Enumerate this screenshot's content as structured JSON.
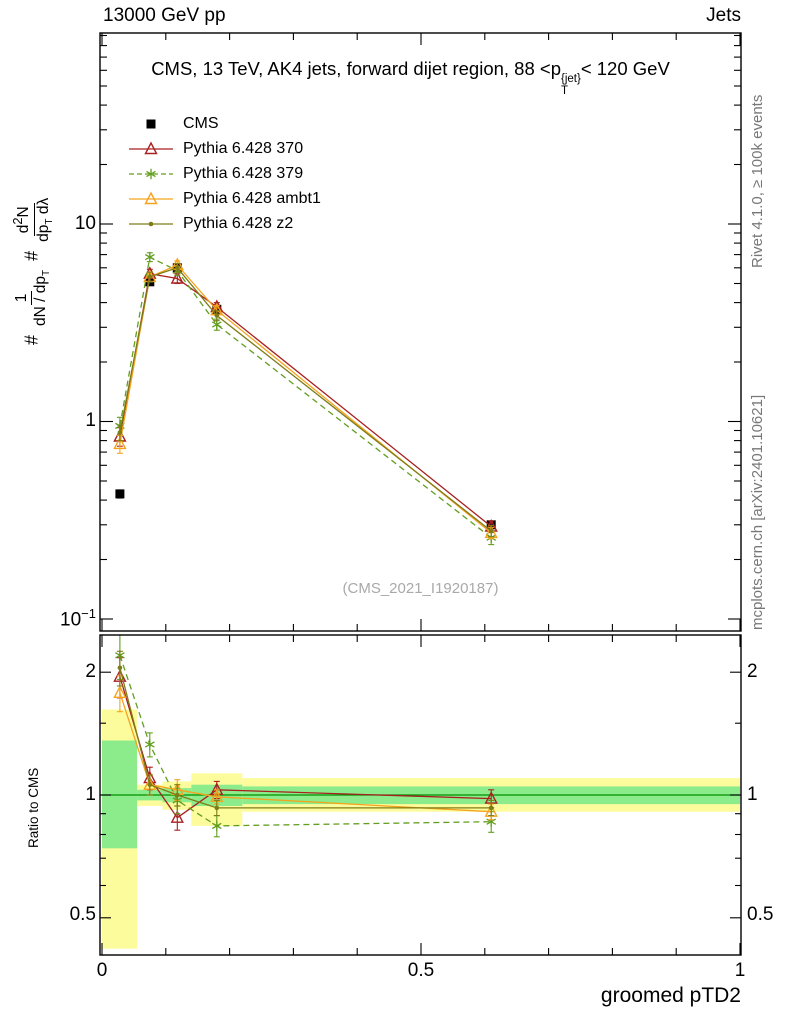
{
  "header": {
    "left": "13000 GeV pp",
    "right": "Jets"
  },
  "side_notes": {
    "rivet": "Rivet 4.1.0, ≥ 100k events",
    "mcplots": "mcplots.cern.ch [arXiv:2401.10621]"
  },
  "watermark": "(CMS_2021_I1920187)",
  "main_panel": {
    "title_parts": {
      "a": "CMS, 13 TeV, AK4 jets, forward dijet region, 88 <p",
      "sup": "{jet}",
      "sub": "T",
      "b": "< 120 GeV"
    },
    "ylabel_parts": {
      "hash1": "#",
      "num1": "1",
      "den1_a": "dN / dp",
      "den1_sub": "T",
      "hash2": "#",
      "num2_a": "d",
      "num2_sup": "2",
      "num2_b": "N",
      "den2_a": "dp",
      "den2_sub": "T",
      "den2_b": " dλ"
    },
    "ytick_labels": {
      "top": "10",
      "mid": "1",
      "bottom_base": "10",
      "bottom_sup": "−1"
    }
  },
  "ratio_panel": {
    "ylabel": "Ratio to CMS",
    "ytick_labels": [
      "2",
      "1",
      "0.5"
    ]
  },
  "xaxis": {
    "title": "groomed pTD2",
    "tick_labels": [
      "0",
      "0.5",
      "1"
    ]
  },
  "chart_data": {
    "type": "line",
    "title": "CMS, 13 TeV, AK4 jets, forward dijet region, 88 <pT^{jet}< 120 GeV",
    "xlabel": "groomed pTD2",
    "ylabel": "# 1/(dN/dpT) # d²N/(dpT dλ)",
    "xlim": [
      0,
      1
    ],
    "legend_position": "top-left",
    "main": {
      "yscale": "log",
      "ylim": [
        0.087,
        92
      ],
      "yticks": [
        0.1,
        1,
        10
      ],
      "x": [
        0.028,
        0.075,
        0.118,
        0.18,
        0.61
      ],
      "series": [
        {
          "name": "CMS",
          "color": "#000000",
          "marker": "square",
          "line": "none",
          "values": [
            0.43,
            5.1,
            6.0,
            3.7,
            0.3
          ],
          "yerr": [
            0.02,
            0.15,
            0.15,
            0.1,
            0.012
          ]
        },
        {
          "name": "Pythia 6.428 370",
          "color": "#a82020",
          "marker": "triangle-open",
          "line": "solid",
          "values": [
            0.84,
            5.6,
            5.3,
            3.8,
            0.294
          ],
          "yerr": [
            0.09,
            0.3,
            0.3,
            0.2,
            0.02
          ]
        },
        {
          "name": "Pythia 6.428 379",
          "color": "#629e1f",
          "marker": "star",
          "line": "dashed",
          "values": [
            0.95,
            6.8,
            5.8,
            3.1,
            0.258
          ],
          "yerr": [
            0.1,
            0.35,
            0.3,
            0.2,
            0.02
          ]
        },
        {
          "name": "Pythia 6.428 ambt1",
          "color": "#f5a31f",
          "marker": "triangle-open",
          "line": "solid",
          "values": [
            0.77,
            5.4,
            6.2,
            3.66,
            0.273
          ],
          "yerr": [
            0.08,
            0.3,
            0.3,
            0.2,
            0.018
          ]
        },
        {
          "name": "Pythia 6.428 z2",
          "color": "#7d7d17",
          "marker": "dot",
          "line": "solid",
          "values": [
            0.88,
            5.4,
            6.0,
            3.44,
            0.279
          ],
          "yerr": [
            0.08,
            0.3,
            0.3,
            0.2,
            0.018
          ]
        }
      ]
    },
    "ratio": {
      "yscale": "log",
      "ylim": [
        0.4,
        2.46
      ],
      "yticks": [
        0.5,
        1,
        2
      ],
      "reference_line": 1,
      "band_colors": {
        "outer": "#fcfc9c",
        "inner": "#8cec8c"
      },
      "bands": [
        {
          "x0": 0.0,
          "x1": 0.055,
          "outer": [
            0.42,
            1.62
          ],
          "inner": [
            0.74,
            1.36
          ]
        },
        {
          "x0": 0.055,
          "x1": 0.095,
          "outer": [
            0.94,
            1.06
          ],
          "inner": [
            0.97,
            1.03
          ]
        },
        {
          "x0": 0.095,
          "x1": 0.14,
          "outer": [
            0.92,
            1.08
          ],
          "inner": [
            0.96,
            1.04
          ]
        },
        {
          "x0": 0.14,
          "x1": 0.22,
          "outer": [
            0.84,
            1.13
          ],
          "inner": [
            0.94,
            1.06
          ]
        },
        {
          "x0": 0.22,
          "x1": 1.0,
          "outer": [
            0.91,
            1.1
          ],
          "inner": [
            0.95,
            1.05
          ]
        }
      ],
      "x": [
        0.028,
        0.075,
        0.118,
        0.18,
        0.61
      ],
      "series": [
        {
          "name": "Pythia 6.428 370",
          "color": "#a82020",
          "marker": "triangle-open",
          "line": "solid",
          "values": [
            1.95,
            1.1,
            0.88,
            1.03,
            0.98
          ],
          "yerr": [
            0.22,
            0.07,
            0.06,
            0.05,
            0.05
          ]
        },
        {
          "name": "Pythia 6.428 379",
          "color": "#629e1f",
          "marker": "star",
          "line": "dashed",
          "values": [
            2.2,
            1.33,
            0.97,
            0.84,
            0.86
          ],
          "yerr": [
            0.28,
            0.09,
            0.07,
            0.05,
            0.05
          ]
        },
        {
          "name": "Pythia 6.428 ambt1",
          "color": "#f5a31f",
          "marker": "triangle-open",
          "line": "solid",
          "values": [
            1.78,
            1.06,
            1.03,
            0.99,
            0.91
          ],
          "yerr": [
            0.18,
            0.06,
            0.06,
            0.04,
            0.04
          ]
        },
        {
          "name": "Pythia 6.428 z2",
          "color": "#7d7d17",
          "marker": "dot",
          "line": "solid",
          "values": [
            2.05,
            1.06,
            1.0,
            0.93,
            0.93
          ],
          "yerr": [
            0.2,
            0.06,
            0.06,
            0.04,
            0.04
          ]
        }
      ]
    }
  }
}
